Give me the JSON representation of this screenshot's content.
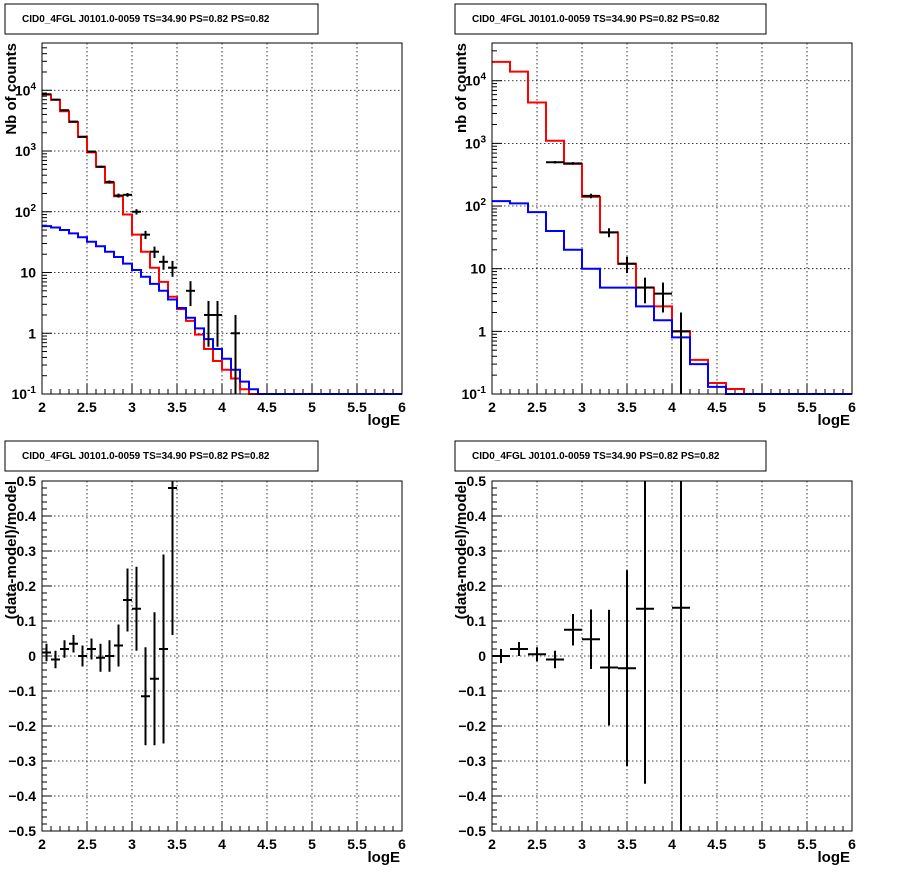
{
  "colors": {
    "data": "#000000",
    "total_model": "#ff0000",
    "component_model": "#0000ff"
  },
  "chart_data": [
    {
      "type": "line",
      "title": "CID0_4FGL J0101.0-0059 TS=34.90 PS=0.82 PS=0.82",
      "xlabel": "logE",
      "ylabel": "Nb of counts",
      "xlim": [
        2,
        6
      ],
      "ylim": [
        0.1,
        60000
      ],
      "log_y": true,
      "grid": true,
      "x_ticks": [
        "2",
        "2.5",
        "3",
        "3.5",
        "4",
        "4.5",
        "5",
        "5.5",
        "6"
      ],
      "y_ticks": [
        "10^-1",
        "1",
        "10",
        "10^2",
        "10^3",
        "10^4"
      ],
      "bin_edges": [
        2.0,
        2.1,
        2.2,
        2.3,
        2.4,
        2.5,
        2.6,
        2.7,
        2.8,
        2.9,
        3.0,
        3.1,
        3.2,
        3.3,
        3.4,
        3.5,
        3.6,
        3.7,
        3.8,
        3.9,
        4.0,
        4.1,
        4.2,
        4.3,
        4.4,
        4.5,
        4.6,
        4.7,
        4.8,
        4.9,
        5.0,
        5.1,
        5.2,
        5.3,
        5.4,
        5.5,
        5.6,
        5.7,
        5.8,
        5.9,
        6.0
      ],
      "series": [
        {
          "name": "",
          "kind": "step",
          "color": "#ff0000",
          "values": [
            8500,
            7000,
            4500,
            3000,
            1700,
            950,
            550,
            300,
            180,
            90,
            42,
            22,
            12,
            7,
            4,
            2.5,
            1.6,
            0.95,
            0.55,
            0.35,
            0.25,
            0.18,
            0.12,
            0.1,
            0.1,
            0.1,
            0.1,
            0.1,
            0.1,
            0.1,
            0.1,
            0.1,
            0.1,
            0.1,
            0.1,
            0.1,
            0.1,
            0.1,
            0.1,
            0.1
          ]
        },
        {
          "name": "",
          "kind": "step",
          "color": "#0000ff",
          "values": [
            58,
            55,
            50,
            44,
            38,
            32,
            27,
            22,
            18,
            14,
            11,
            8.5,
            6.5,
            5,
            3.6,
            2.6,
            1.8,
            1.2,
            0.8,
            0.55,
            0.38,
            0.25,
            0.16,
            0.12,
            0.1,
            0.1,
            0.1,
            0.1,
            0.1,
            0.1,
            0.1,
            0.1,
            0.1,
            0.1,
            0.1,
            0.1,
            0.1,
            0.1,
            0.1,
            0.1
          ]
        },
        {
          "name": "",
          "kind": "points",
          "color": "#000000",
          "x": [
            2.05,
            2.15,
            2.25,
            2.35,
            2.45,
            2.55,
            2.65,
            2.75,
            2.85,
            2.95,
            3.05,
            3.15,
            3.25,
            3.35,
            3.45,
            3.65,
            3.85,
            3.95,
            4.15
          ],
          "y": [
            8600,
            7000,
            4700,
            3050,
            1720,
            980,
            550,
            310,
            185,
            190,
            100,
            42,
            22,
            15,
            12,
            5,
            2,
            2,
            1
          ],
          "xerr": 0.05,
          "yerr_lo": [
            93,
            84,
            69,
            55,
            41,
            31,
            23,
            18,
            14,
            14,
            10,
            6.5,
            4.7,
            3.9,
            3.5,
            2.2,
            1.4,
            1.4,
            1.0
          ],
          "yerr_hi": [
            93,
            84,
            69,
            55,
            41,
            31,
            23,
            18,
            14,
            14,
            10,
            6.5,
            4.7,
            3.9,
            3.5,
            2.2,
            1.4,
            1.4,
            1.0
          ]
        }
      ]
    },
    {
      "type": "line",
      "title": "CID0_4FGL J0101.0-0059 TS=34.90 PS=0.82 PS=0.82",
      "xlabel": "logE",
      "ylabel": "nb of counts",
      "xlim": [
        2,
        6
      ],
      "ylim": [
        0.1,
        40000
      ],
      "log_y": true,
      "grid": true,
      "x_ticks": [
        "2",
        "2.5",
        "3",
        "3.5",
        "4",
        "4.5",
        "5",
        "5.5",
        "6"
      ],
      "y_ticks": [
        "10^-1",
        "1",
        "10",
        "10^2",
        "10^3",
        "10^4"
      ],
      "bin_edges": [
        2.0,
        2.2,
        2.4,
        2.6,
        2.8,
        3.0,
        3.2,
        3.4,
        3.6,
        3.8,
        4.0,
        4.2,
        4.4,
        4.6,
        4.8,
        5.0,
        5.2,
        5.4,
        5.6,
        5.8,
        6.0
      ],
      "series": [
        {
          "name": "",
          "kind": "step",
          "color": "#ff0000",
          "values": [
            20000,
            14000,
            4500,
            1100,
            470,
            140,
            38,
            12,
            5,
            2.5,
            1,
            0.35,
            0.15,
            0.12,
            0.1,
            0.1,
            0.1,
            0.1,
            0.1,
            0.1
          ]
        },
        {
          "name": "",
          "kind": "step",
          "color": "#0000ff",
          "values": [
            120,
            110,
            80,
            40,
            20,
            10,
            5,
            5,
            2.5,
            1.5,
            0.8,
            0.3,
            0.13,
            0.1,
            0.1,
            0.1,
            0.1,
            0.1,
            0.1,
            0.1
          ]
        },
        {
          "name": "",
          "kind": "points",
          "color": "#000000",
          "x": [
            2.7,
            2.9,
            3.1,
            3.3,
            3.5,
            3.7,
            3.9,
            4.1
          ],
          "y": [
            500,
            480,
            145,
            38,
            12,
            5,
            4,
            1
          ],
          "xerr": 0.1,
          "yerr_lo": [
            22,
            22,
            12,
            6.2,
            3.5,
            2.2,
            2.0,
            0.99
          ],
          "yerr_hi": [
            22,
            22,
            12,
            6.2,
            3.5,
            2.2,
            2.0,
            1.0
          ]
        }
      ]
    },
    {
      "type": "scatter",
      "title": "CID0_4FGL J0101.0-0059 TS=34.90 PS=0.82 PS=0.82",
      "xlabel": "logE",
      "ylabel": "(data-model)/model",
      "xlim": [
        2,
        6
      ],
      "ylim": [
        -0.5,
        0.5
      ],
      "log_y": false,
      "grid": true,
      "x_ticks": [
        "2",
        "2.5",
        "3",
        "3.5",
        "4",
        "4.5",
        "5",
        "5.5",
        "6"
      ],
      "y_ticks": [
        "−0.5",
        "−0.4",
        "−0.3",
        "−0.2",
        "−0.1",
        "0",
        "0.1",
        "0.2",
        "0.3",
        "0.4",
        "0.5"
      ],
      "series": [
        {
          "name": "",
          "kind": "points",
          "color": "#000000",
          "x": [
            2.05,
            2.15,
            2.25,
            2.35,
            2.45,
            2.55,
            2.65,
            2.75,
            2.85,
            2.95,
            3.05,
            3.15,
            3.25,
            3.35,
            3.45
          ],
          "y": [
            0.01,
            -0.01,
            0.02,
            0.035,
            0.0,
            0.02,
            -0.005,
            0.0,
            0.03,
            0.16,
            0.135,
            -0.115,
            -0.065,
            0.02,
            0.48
          ],
          "xerr": 0.05,
          "yerr": [
            0.025,
            0.025,
            0.025,
            0.025,
            0.03,
            0.03,
            0.04,
            0.045,
            0.06,
            0.09,
            0.12,
            0.14,
            0.19,
            0.27,
            0.42
          ]
        }
      ]
    },
    {
      "type": "scatter",
      "title": "CID0_4FGL J0101.0-0059 TS=34.90 PS=0.82 PS=0.82",
      "xlabel": "logE",
      "ylabel": "(data-model)/model",
      "xlim": [
        2,
        6
      ],
      "ylim": [
        -0.5,
        0.5
      ],
      "log_y": false,
      "grid": true,
      "x_ticks": [
        "2",
        "2.5",
        "3",
        "3.5",
        "4",
        "4.5",
        "5",
        "5.5",
        "6"
      ],
      "y_ticks": [
        "−0.5",
        "−0.4",
        "−0.3",
        "−0.2",
        "−0.1",
        "0",
        "0.1",
        "0.2",
        "0.3",
        "0.4",
        "0.5"
      ],
      "series": [
        {
          "name": "",
          "kind": "points",
          "color": "#000000",
          "x": [
            2.1,
            2.3,
            2.5,
            2.7,
            2.9,
            3.1,
            3.3,
            3.5,
            3.7,
            4.1
          ],
          "y": [
            0.0,
            0.02,
            0.005,
            -0.01,
            0.075,
            0.048,
            -0.033,
            -0.035,
            0.135,
            0.138
          ],
          "xerr": 0.1,
          "yerr": [
            0.02,
            0.02,
            0.02,
            0.025,
            0.045,
            0.085,
            0.165,
            0.28,
            0.5,
            0.9
          ]
        }
      ]
    }
  ]
}
